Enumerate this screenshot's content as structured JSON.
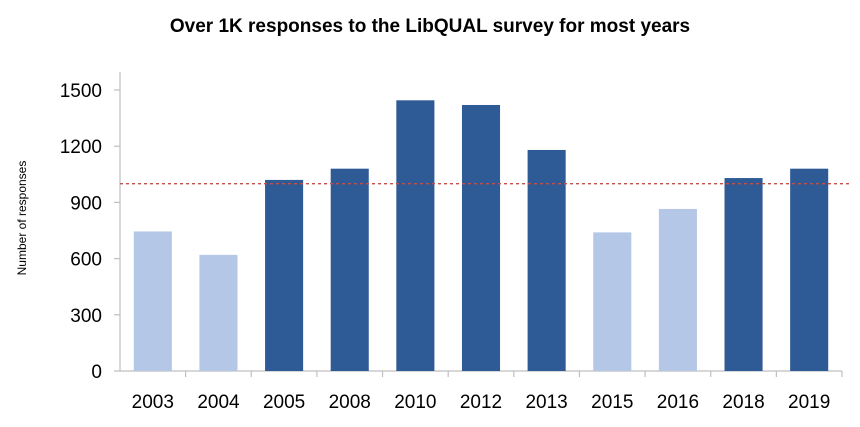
{
  "chart_data": {
    "type": "bar",
    "title": "Over 1K responses to the LibQUAL survey for most years",
    "xlabel": "",
    "ylabel": "Number of responses",
    "categories": [
      "2003",
      "2004",
      "2005",
      "2008",
      "2010",
      "2012",
      "2013",
      "2015",
      "2016",
      "2018",
      "2019"
    ],
    "values": [
      745,
      620,
      1020,
      1080,
      1445,
      1420,
      1180,
      740,
      865,
      1030,
      1080
    ],
    "above_threshold": [
      false,
      false,
      true,
      true,
      true,
      true,
      true,
      false,
      false,
      true,
      true
    ],
    "ylim": [
      0,
      1500
    ],
    "yticks": [
      0,
      300,
      600,
      900,
      1200,
      1500
    ],
    "reference_line": {
      "value": 1000,
      "style": "dashed",
      "color": "#c0504d"
    },
    "colors": {
      "above": "#2e5a96",
      "below": "#b4c7e7",
      "axis": "#bfbfbf"
    },
    "grid": false,
    "legend": "none"
  }
}
